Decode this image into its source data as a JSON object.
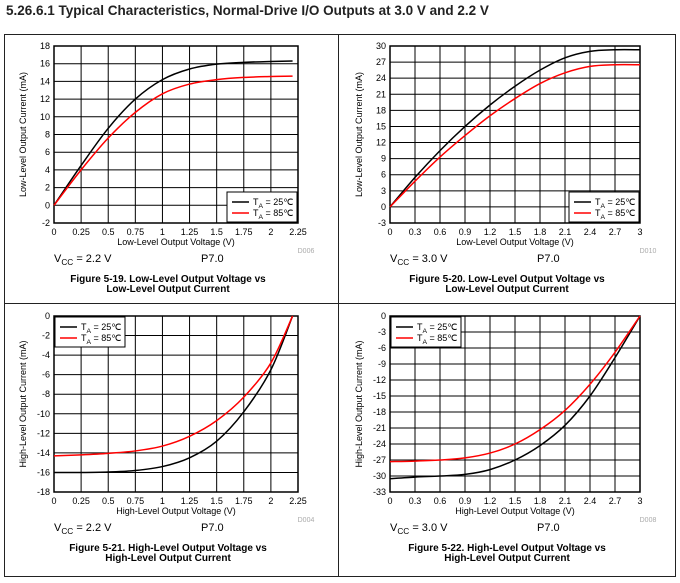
{
  "page_title": "5.26.6.1   Typical Characteristics, Normal-Drive I/O Outputs at 3.0 V and 2.2 V",
  "colors": {
    "s25": "#000000",
    "s85": "#ff0000",
    "grid": "#000000"
  },
  "chart_data": [
    {
      "type": "line",
      "title": "Figure 5-19. Low-Level Output Voltage vs",
      "title2": "Low-Level Output Current",
      "xlabel": "Low-Level Output Voltage (V)",
      "ylabel": "Low-Level Output Current (mA)",
      "code": "D006",
      "vcc": {
        "pre": "V",
        "sub": "CC",
        "post": " = 2.2 V"
      },
      "port": "P7.0",
      "xlim": [
        0,
        2.25
      ],
      "ylim": [
        -2,
        18
      ],
      "xticks": [
        "0",
        "0.25",
        "0.5",
        "0.75",
        "1",
        "1.25",
        "1.5",
        "1.75",
        "2",
        "2.25"
      ],
      "yticks": [
        "-2",
        "0",
        "2",
        "4",
        "6",
        "8",
        "10",
        "12",
        "14",
        "16",
        "18"
      ],
      "legend_pos": "bottom-right",
      "x": [
        0,
        0.25,
        0.5,
        0.75,
        1,
        1.25,
        1.5,
        1.75,
        2,
        2.2
      ],
      "series": [
        {
          "name": {
            "pre": "T",
            "sub": "A",
            "post": " = 25℃"
          },
          "values": [
            0,
            4.5,
            8.7,
            12,
            14.2,
            15.4,
            15.95,
            16.15,
            16.25,
            16.3
          ]
        },
        {
          "name": {
            "pre": "T",
            "sub": "A",
            "post": " = 85℃"
          },
          "values": [
            0,
            4,
            7.6,
            10.5,
            12.6,
            13.7,
            14.2,
            14.45,
            14.55,
            14.6
          ]
        }
      ]
    },
    {
      "type": "line",
      "title": "Figure 5-20. Low-Level Output Voltage vs",
      "title2": "Low-Level Output Current",
      "xlabel": "Low-Level Output Voltage (V)",
      "ylabel": "Low-Level Output Current (mA)",
      "code": "D010",
      "vcc": {
        "pre": "V",
        "sub": "CC",
        "post": " = 3.0 V"
      },
      "port": "P7.0",
      "xlim": [
        0,
        3
      ],
      "ylim": [
        -3,
        30
      ],
      "xticks": [
        "0",
        "0.3",
        "0.6",
        "0.9",
        "1.2",
        "1.5",
        "1.8",
        "2.1",
        "2.4",
        "2.7",
        "3"
      ],
      "yticks": [
        "-3",
        "0",
        "3",
        "6",
        "9",
        "12",
        "15",
        "18",
        "21",
        "24",
        "27",
        "30"
      ],
      "legend_pos": "bottom-right",
      "x": [
        0,
        0.3,
        0.6,
        0.9,
        1.2,
        1.5,
        1.8,
        2.1,
        2.4,
        2.7,
        3
      ],
      "series": [
        {
          "name": {
            "pre": "T",
            "sub": "A",
            "post": " = 25℃"
          },
          "values": [
            0,
            5.5,
            10.5,
            15,
            19,
            22.5,
            25.5,
            27.8,
            29,
            29.3,
            29.3
          ]
        },
        {
          "name": {
            "pre": "T",
            "sub": "A",
            "post": " = 85℃"
          },
          "values": [
            0,
            4.8,
            9.3,
            13.3,
            17,
            20.2,
            23,
            25,
            26.2,
            26.5,
            26.5
          ]
        }
      ]
    },
    {
      "type": "line",
      "title": "Figure 5-21. High-Level Output Voltage vs",
      "title2": "High-Level Output Current",
      "xlabel": "High-Level Output Voltage (V)",
      "ylabel": "High-Level Output Current (mA)",
      "code": "D004",
      "vcc": {
        "pre": "V",
        "sub": "CC",
        "post": " = 2.2 V"
      },
      "port": "P7.0",
      "xlim": [
        0,
        2.25
      ],
      "ylim": [
        -18,
        0
      ],
      "xticks": [
        "0",
        "0.25",
        "0.5",
        "0.75",
        "1",
        "1.25",
        "1.5",
        "1.75",
        "2",
        "2.25"
      ],
      "yticks": [
        "-18",
        "-16",
        "-14",
        "-12",
        "-10",
        "-8",
        "-6",
        "-4",
        "-2",
        "0"
      ],
      "legend_pos": "top-left",
      "x": [
        0,
        0.25,
        0.5,
        0.75,
        1,
        1.25,
        1.5,
        1.75,
        2,
        2.2
      ],
      "series": [
        {
          "name": {
            "pre": "T",
            "sub": "A",
            "post": " = 25℃"
          },
          "values": [
            -16,
            -16,
            -15.95,
            -15.8,
            -15.4,
            -14.5,
            -12.8,
            -9.8,
            -5.5,
            0
          ]
        },
        {
          "name": {
            "pre": "T",
            "sub": "A",
            "post": " = 85℃"
          },
          "values": [
            -14.3,
            -14.2,
            -14.05,
            -13.8,
            -13.3,
            -12.3,
            -10.7,
            -8.3,
            -4.8,
            0
          ]
        }
      ]
    },
    {
      "type": "line",
      "title": "Figure 5-22. High-Level Output Voltage vs",
      "title2": "High-Level Output Current",
      "xlabel": "High-Level Output Voltage (V)",
      "ylabel": "High-Level Output Current (mA)",
      "code": "D008",
      "vcc": {
        "pre": "V",
        "sub": "CC",
        "post": " = 3.0 V"
      },
      "port": "P7.0",
      "xlim": [
        0,
        3
      ],
      "ylim": [
        -33,
        0
      ],
      "xticks": [
        "0",
        "0.3",
        "0.6",
        "0.9",
        "1.2",
        "1.5",
        "1.8",
        "2.1",
        "2.4",
        "2.7",
        "3"
      ],
      "yticks": [
        "-33",
        "-30",
        "-27",
        "-24",
        "-21",
        "-18",
        "-15",
        "-12",
        "-9",
        "-6",
        "-3",
        "0"
      ],
      "legend_pos": "top-left",
      "x": [
        0,
        0.3,
        0.6,
        0.9,
        1.2,
        1.5,
        1.8,
        2.1,
        2.4,
        2.7,
        3
      ],
      "series": [
        {
          "name": {
            "pre": "T",
            "sub": "A",
            "post": " = 25℃"
          },
          "values": [
            -30.5,
            -30.2,
            -30,
            -29.7,
            -28.8,
            -27,
            -24.3,
            -20.5,
            -15,
            -7.8,
            0
          ]
        },
        {
          "name": {
            "pre": "T",
            "sub": "A",
            "post": " = 85℃"
          },
          "values": [
            -27.3,
            -27.2,
            -27,
            -26.6,
            -25.7,
            -24,
            -21.3,
            -17.7,
            -12.8,
            -6.8,
            0
          ]
        }
      ]
    }
  ]
}
